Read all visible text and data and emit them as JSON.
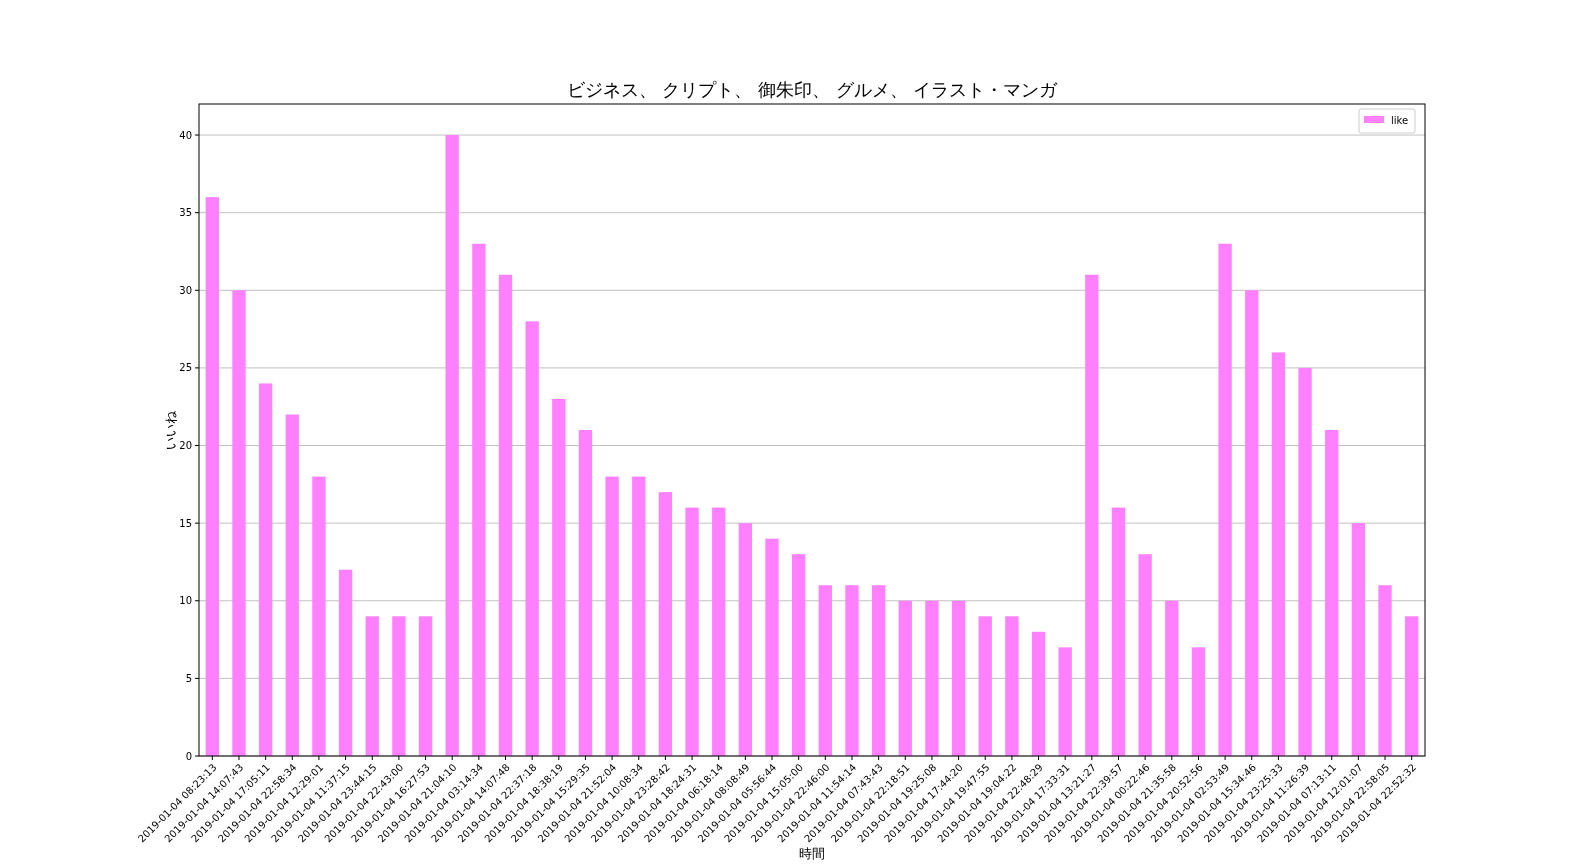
{
  "chart_data": {
    "type": "bar",
    "title": "ビジネス、 クリプト、 御朱印、 グルメ、 イラスト・マンガ",
    "xlabel": "時間",
    "ylabel": "いいね",
    "categories": [
      "2019-01-04 08:23:13",
      "2019-01-04 14:07:43",
      "2019-01-04 17:05:11",
      "2019-01-04 22:58:34",
      "2019-01-04 12:29:01",
      "2019-01-04 11:37:15",
      "2019-01-04 23:44:15",
      "2019-01-04 22:43:00",
      "2019-01-04 16:27:53",
      "2019-01-04 21:04:10",
      "2019-01-04 03:14:34",
      "2019-01-04 14:07:48",
      "2019-01-04 22:37:18",
      "2019-01-04 18:38:19",
      "2019-01-04 15:29:35",
      "2019-01-04 21:52:04",
      "2019-01-04 10:08:34",
      "2019-01-04 23:28:42",
      "2019-01-04 18:24:31",
      "2019-01-04 06:18:14",
      "2019-01-04 08:08:49",
      "2019-01-04 05:56:44",
      "2019-01-04 15:05:00",
      "2019-01-04 22:46:00",
      "2019-01-04 11:54:14",
      "2019-01-04 07:43:43",
      "2019-01-04 22:18:51",
      "2019-01-04 19:25:08",
      "2019-01-04 17:44:20",
      "2019-01-04 19:47:55",
      "2019-01-04 19:04:22",
      "2019-01-04 22:48:29",
      "2019-01-04 17:33:31",
      "2019-01-04 13:21:27",
      "2019-01-04 22:39:57",
      "2019-01-04 00:22:46",
      "2019-01-04 21:35:58",
      "2019-01-04 20:52:56",
      "2019-01-04 02:53:49",
      "2019-01-04 15:34:46",
      "2019-01-04 23:25:33",
      "2019-01-04 11:26:39",
      "2019-01-04 07:13:11",
      "2019-01-04 12:01:07",
      "2019-01-04 22:58:05",
      "2019-01-04 22:52:32"
    ],
    "series": [
      {
        "name": "like",
        "color": "#ff80ff",
        "values": [
          36,
          30,
          24,
          22,
          18,
          12,
          9,
          9,
          9,
          40,
          33,
          31,
          28,
          23,
          21,
          18,
          18,
          17,
          16,
          16,
          15,
          14,
          13,
          11,
          11,
          11,
          10,
          10,
          10,
          9,
          9,
          8,
          7,
          31,
          16,
          13,
          10,
          7,
          33,
          30,
          26,
          25,
          21,
          15,
          11,
          9
        ]
      }
    ],
    "ylim": [
      0,
      42
    ],
    "yticks": [
      0,
      5,
      10,
      15,
      20,
      25,
      30,
      35,
      40
    ],
    "grid": "y",
    "legend": "top right"
  }
}
